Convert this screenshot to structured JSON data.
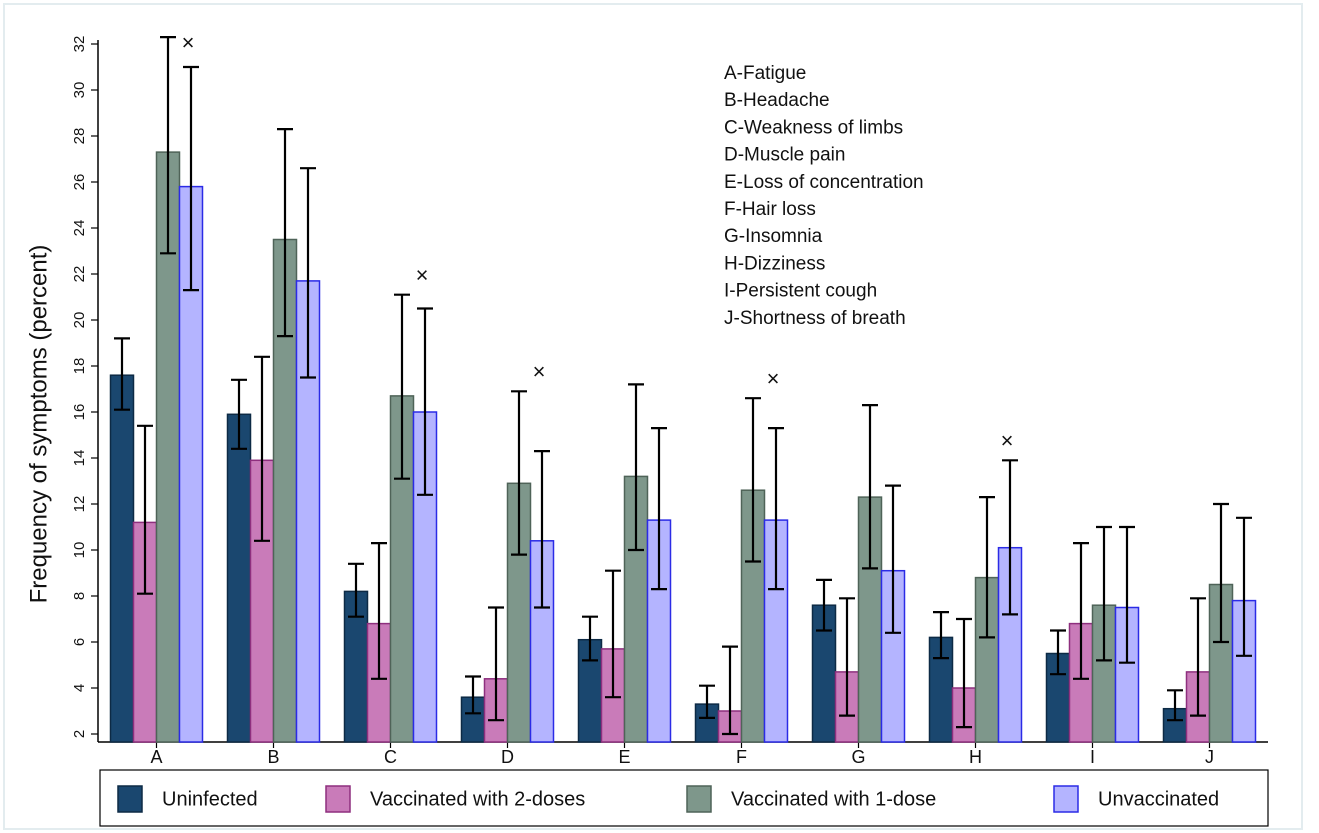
{
  "chart_data": {
    "type": "bar",
    "y_label": "Frequency of symptoms (percent)",
    "categories": [
      "A",
      "B",
      "C",
      "D",
      "E",
      "F",
      "G",
      "H",
      "I",
      "J"
    ],
    "series": [
      {
        "name": "Uninfected",
        "color": "#1a476f",
        "border": "#0d2a45",
        "values": [
          17.6,
          15.9,
          8.2,
          3.6,
          6.1,
          3.3,
          7.6,
          6.2,
          5.5,
          3.1
        ],
        "lower": [
          16.1,
          14.4,
          7.1,
          2.9,
          5.2,
          2.7,
          6.5,
          5.3,
          4.6,
          2.6
        ],
        "upper": [
          19.2,
          17.4,
          9.4,
          4.5,
          7.1,
          4.1,
          8.7,
          7.3,
          6.5,
          3.9
        ]
      },
      {
        "name": "Vaccinated with 2-doses",
        "color": "#c97bb9",
        "border": "#8e2f7e",
        "values": [
          11.2,
          13.9,
          6.8,
          4.4,
          5.7,
          3.0,
          4.7,
          4.0,
          6.8,
          4.7
        ],
        "lower": [
          8.1,
          10.4,
          4.4,
          2.6,
          3.6,
          2.0,
          2.8,
          2.3,
          4.4,
          2.8
        ],
        "upper": [
          15.4,
          18.4,
          10.3,
          7.5,
          9.1,
          5.8,
          7.9,
          7.0,
          10.3,
          7.9
        ]
      },
      {
        "name": "Vaccinated with 1-dose",
        "color": "#7e978b",
        "border": "#4f6358",
        "values": [
          27.3,
          23.5,
          16.7,
          12.9,
          13.2,
          12.6,
          12.3,
          8.8,
          7.6,
          8.5
        ],
        "lower": [
          22.9,
          19.3,
          13.1,
          9.8,
          10.0,
          9.5,
          9.2,
          6.2,
          5.2,
          6.0
        ],
        "upper": [
          32.3,
          28.3,
          21.1,
          16.9,
          17.2,
          16.6,
          16.3,
          12.3,
          11.0,
          12.0
        ]
      },
      {
        "name": "Unvaccinated",
        "color": "#b4b4ff",
        "border": "#2b2be6",
        "values": [
          25.8,
          21.7,
          16.0,
          10.4,
          11.3,
          11.3,
          9.1,
          10.1,
          7.5,
          7.8
        ],
        "lower": [
          21.3,
          17.5,
          12.4,
          7.5,
          8.3,
          8.3,
          6.4,
          7.2,
          5.1,
          5.4
        ],
        "upper": [
          31.0,
          26.6,
          20.5,
          14.3,
          15.3,
          15.3,
          12.8,
          13.9,
          11.0,
          11.4
        ]
      }
    ],
    "markers": [
      {
        "text": "×",
        "category": "A"
      },
      {
        "text": "×",
        "category": "C"
      },
      {
        "text": "×",
        "category": "D"
      },
      {
        "text": "×",
        "category": "F"
      },
      {
        "text": "×",
        "category": "H"
      }
    ],
    "key_text": [
      "A-Fatigue",
      "B-Headache",
      "C-Weakness of limbs",
      "D-Muscle pain",
      "E-Loss of concentration",
      "F-Hair loss",
      "G-Insomnia",
      "H-Dizziness",
      "I-Persistent cough",
      "J-Shortness of breath"
    ],
    "ylim": [
      2,
      32
    ],
    "yticks": [
      2,
      4,
      6,
      8,
      10,
      12,
      14,
      16,
      18,
      20,
      22,
      24,
      26,
      28,
      30,
      32
    ],
    "legend": "bottom"
  }
}
